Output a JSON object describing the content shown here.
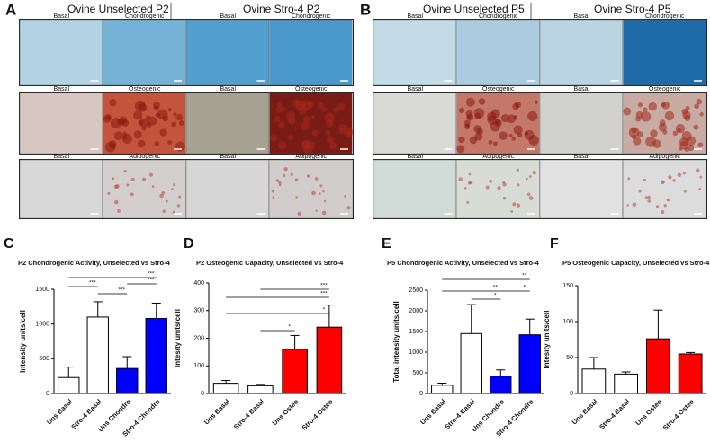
{
  "panels": [
    {
      "letter": "A",
      "groups": [
        "Ovine Unselected P2",
        "Ovine Stro-4 P2"
      ],
      "rows": [
        [
          "Basal",
          "Chondrogenic",
          "Basal",
          "Chondrogenic"
        ],
        [
          "Basal",
          "Osteogenic",
          "Basal",
          "Osteogenic"
        ],
        [
          "Basal",
          "Adipogenic",
          "Basal",
          "Adipogenic"
        ]
      ]
    },
    {
      "letter": "B",
      "groups": [
        "Ovine Unselected P5",
        "Ovine Stro-4 P5"
      ],
      "rows": [
        [
          "Basal",
          "Chondrogenic",
          "Basal",
          "Chondrogenic"
        ],
        [
          "Basal",
          "Osteogenic",
          "Basal",
          "Osteogenic"
        ],
        [
          "Basal",
          "Adipogenic",
          "Basal",
          "Adipogenic"
        ]
      ]
    }
  ],
  "chart_data": [
    {
      "type": "bar",
      "letter": "C",
      "title": "P2 Chondrogenic Activity, Unselected vs Stro-4",
      "y_label": "Intensity units/cell",
      "categories": [
        "Uns Basal",
        "Stro-4 Basal",
        "Uns Chondro",
        "Stro-4 Chondro"
      ],
      "values": [
        230,
        1100,
        360,
        1080
      ],
      "errors": [
        150,
        220,
        170,
        220
      ],
      "colors": [
        "#ffffff",
        "#ffffff",
        "#0000ff",
        "#0000ff"
      ],
      "ylim": [
        0,
        1500
      ],
      "yticks": [
        0,
        500,
        1000,
        1500
      ],
      "comparisons": [
        {
          "label": "***"
        },
        {
          "label": "***"
        },
        {
          "label": "***"
        },
        {
          "label": "***"
        }
      ]
    },
    {
      "type": "bar",
      "letter": "D",
      "title": "P2 Osteogenic Capacity, Unselected vs Stro-4",
      "y_label": "Intesity units/cell",
      "categories": [
        "Uns Basal",
        "Stro-4 Basal",
        "Uns Osteo",
        "Stro-4 Osteo"
      ],
      "values": [
        37,
        28,
        160,
        240
      ],
      "errors": [
        10,
        5,
        50,
        80
      ],
      "colors": [
        "#ffffff",
        "#ffffff",
        "#ff0000",
        "#ff0000"
      ],
      "ylim": [
        0,
        400
      ],
      "yticks": [
        0,
        100,
        200,
        300,
        400
      ],
      "comparisons": [
        {
          "label": "***"
        },
        {
          "label": "***"
        },
        {
          "label": "*"
        },
        {
          "label": "*"
        }
      ]
    },
    {
      "type": "bar",
      "letter": "E",
      "title": "P5 Chondrogenic Activity, Unselected vs Stro-4",
      "y_label": "Total intensity units/cell",
      "categories": [
        "Uns Basal",
        "Stro-4 Basal",
        "Uns Chondro",
        "Stro-4 Chondro"
      ],
      "values": [
        200,
        1450,
        420,
        1420
      ],
      "errors": [
        50,
        700,
        150,
        380
      ],
      "colors": [
        "#ffffff",
        "#ffffff",
        "#0000ff",
        "#0000ff"
      ],
      "ylim": [
        0,
        2500
      ],
      "yticks": [
        0,
        500,
        1000,
        1500,
        2000,
        2500
      ],
      "comparisons": [
        {
          "label": "**"
        },
        {
          "label": "**"
        },
        {
          "label": "*"
        },
        {
          "label": "*"
        }
      ]
    },
    {
      "type": "bar",
      "letter": "F",
      "title": "P5 Osteogenic Capacity, Unselected vs Stro-4",
      "y_label": "Intesity units/cell",
      "categories": [
        "Uns Basal",
        "Stro-4 Basal",
        "Uns Osteo",
        "Stro-4 Osteo"
      ],
      "values": [
        34,
        27,
        76,
        55
      ],
      "errors": [
        16,
        3,
        40,
        2
      ],
      "colors": [
        "#ffffff",
        "#ffffff",
        "#ff0000",
        "#ff0000"
      ],
      "ylim": [
        0,
        150
      ],
      "yticks": [
        0,
        50,
        100,
        150
      ],
      "comparisons": []
    }
  ]
}
